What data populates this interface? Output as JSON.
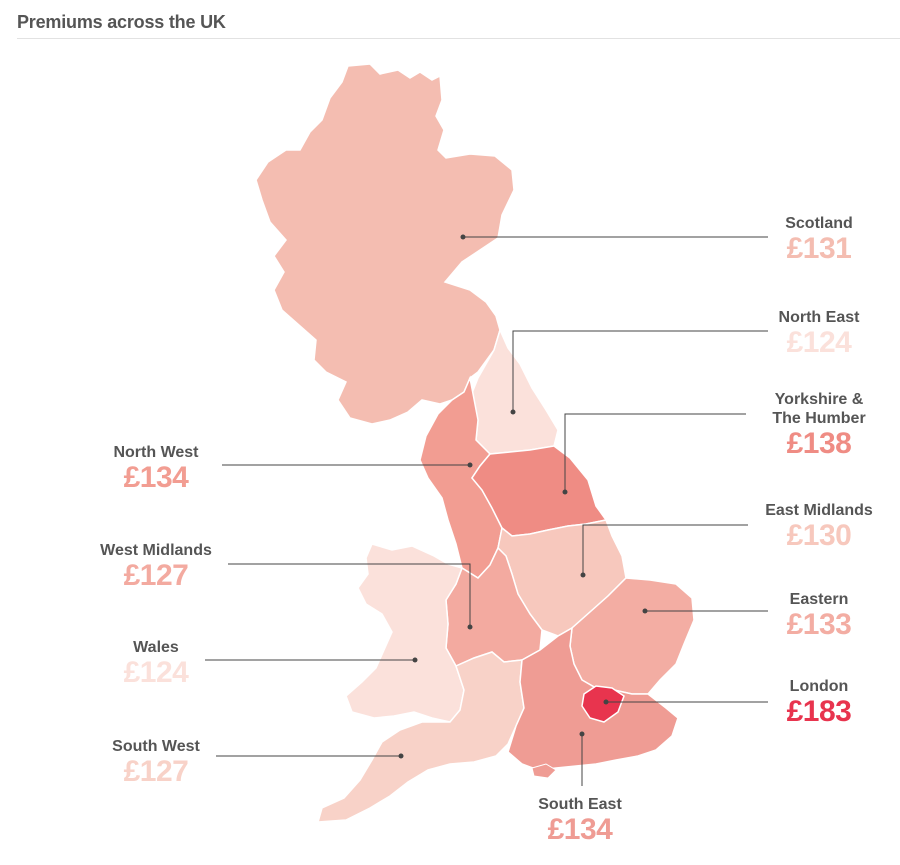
{
  "title": "Premiums across the UK",
  "currency_symbol": "£",
  "regions": [
    {
      "id": "scotland",
      "name": "Scotland",
      "value": 131,
      "color": "#f4bdb1"
    },
    {
      "id": "north-east",
      "name": "North East",
      "value": 124,
      "color": "#fbe1db"
    },
    {
      "id": "yorkshire",
      "name": "Yorkshire &\nThe Humber",
      "value": 138,
      "color": "#ef8c84"
    },
    {
      "id": "north-west",
      "name": "North West",
      "value": 134,
      "color": "#f29d92"
    },
    {
      "id": "east-midlands",
      "name": "East Midlands",
      "value": 130,
      "color": "#f7c8bd"
    },
    {
      "id": "west-midlands",
      "name": "West Midlands",
      "value": 127,
      "color": "#f3aaa0"
    },
    {
      "id": "eastern",
      "name": "Eastern",
      "value": 133,
      "color": "#f3ada3"
    },
    {
      "id": "wales",
      "name": "Wales",
      "value": 124,
      "color": "#fbe1db"
    },
    {
      "id": "london",
      "name": "London",
      "value": 183,
      "color": "#e8344e"
    },
    {
      "id": "south-west",
      "name": "South West",
      "value": 127,
      "color": "#f8d2c8"
    },
    {
      "id": "south-east",
      "name": "South East",
      "value": 134,
      "color": "#ef9c94"
    }
  ]
}
